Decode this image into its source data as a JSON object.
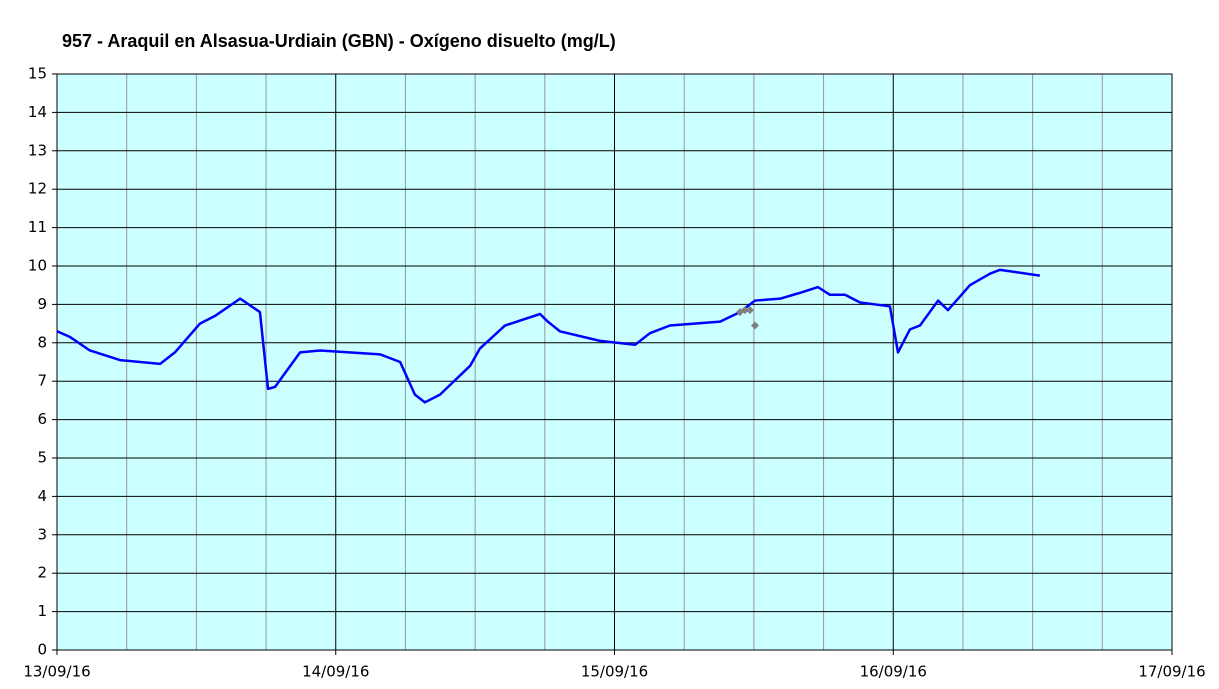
{
  "chart_data": {
    "type": "line",
    "title": "957 - Araquil en Alsasua-Urdiain (GBN) - Oxígeno disuelto (mg/L)",
    "xlim": [
      0,
      4
    ],
    "xticks": [
      {
        "value": 0,
        "label": "13/09/16"
      },
      {
        "value": 1,
        "label": "14/09/16"
      },
      {
        "value": 2,
        "label": "15/09/16"
      },
      {
        "value": 3,
        "label": "16/09/16"
      },
      {
        "value": 4,
        "label": "17/09/16"
      }
    ],
    "x_minor_ticks": [
      0.25,
      0.5,
      0.75,
      1.25,
      1.5,
      1.75,
      2.25,
      2.5,
      2.75,
      3.25,
      3.5,
      3.75
    ],
    "ylim": [
      0,
      15
    ],
    "yticks": [
      0,
      1,
      2,
      3,
      4,
      5,
      6,
      7,
      8,
      9,
      10,
      11,
      12,
      13,
      14,
      15
    ],
    "grid": true,
    "background": "#ccffff",
    "series": [
      {
        "color": "#0000ff",
        "marker": "none",
        "x": [
          0,
          0.047,
          0.118,
          0.226,
          0.37,
          0.423,
          0.513,
          0.567,
          0.657,
          0.728,
          0.757,
          0.782,
          0.872,
          0.944,
          1.159,
          1.231,
          1.284,
          1.32,
          1.374,
          1.482,
          1.517,
          1.607,
          1.733,
          1.761,
          1.804,
          1.948,
          2.074,
          2.127,
          2.199,
          2.379,
          2.45,
          2.504,
          2.594,
          2.665,
          2.73,
          2.773,
          2.827,
          2.881,
          2.988,
          3.017,
          3.06,
          3.096,
          3.161,
          3.196,
          3.239,
          3.275,
          3.347,
          3.383,
          3.526
        ],
        "values": [
          8.3,
          8.15,
          7.8,
          7.55,
          7.45,
          7.75,
          8.5,
          8.7,
          9.15,
          8.8,
          6.8,
          6.85,
          7.75,
          7.8,
          7.7,
          7.5,
          6.65,
          6.45,
          6.65,
          7.4,
          7.85,
          8.45,
          8.75,
          8.55,
          8.3,
          8.05,
          7.95,
          8.25,
          8.45,
          8.55,
          8.8,
          9.1,
          9.15,
          9.3,
          9.45,
          9.25,
          9.25,
          9.05,
          8.95,
          7.75,
          8.35,
          8.45,
          9.1,
          8.85,
          9.2,
          9.5,
          9.8,
          9.9,
          9.75
        ]
      },
      {
        "color": "#808080",
        "marker": "diamond",
        "x": [
          2.45,
          2.468,
          2.486,
          2.504
        ],
        "values": [
          8.8,
          8.85,
          8.85,
          8.45
        ]
      }
    ]
  }
}
